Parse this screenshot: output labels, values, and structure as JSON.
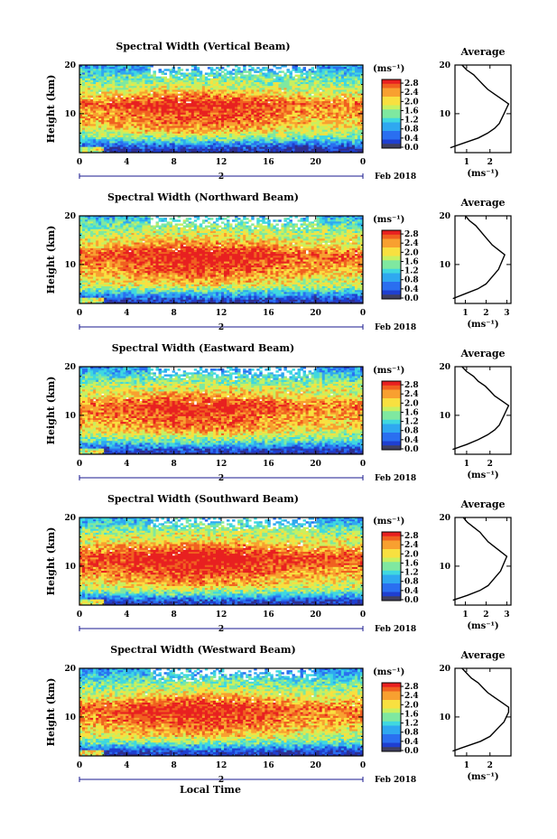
{
  "figure": {
    "x_label": "Local Time",
    "date_label": "Feb 2018",
    "day_label": "2",
    "y_label": "Height (km)",
    "colorbar_unit": "(ms⁻¹)",
    "avg_title": "Average",
    "avg_unit": "(ms⁻¹)"
  },
  "colors": {
    "scale": [
      "#2f2f8f",
      "#1f3fd0",
      "#2a6ff0",
      "#2fa8f0",
      "#3fd8e0",
      "#7fe8a0",
      "#c8f060",
      "#f8e040",
      "#f8a030",
      "#f06020",
      "#e82020"
    ]
  },
  "chart_data": [
    {
      "type": "heatmap",
      "title": "Spectral Width (Vertical Beam)",
      "x_ticks": [
        "0",
        "4",
        "8",
        "12",
        "16",
        "20",
        "0"
      ],
      "xlim": [
        0,
        24
      ],
      "y_ticks": [
        "20",
        "10"
      ],
      "ylim": [
        2,
        20
      ],
      "colorbar_ticks": [
        "2.8",
        "2.4",
        "2.0",
        "1.6",
        "1.2",
        "0.8",
        "0.4",
        "0.0"
      ],
      "clim": [
        0,
        3.0
      ],
      "profile": {
        "height": [
          3,
          4,
          5,
          6,
          7,
          8,
          9,
          10,
          11,
          12,
          13,
          14,
          15,
          16,
          17,
          18,
          19,
          20
        ],
        "width": [
          0.3,
          0.9,
          1.5,
          1.9,
          2.2,
          2.4,
          2.5,
          2.6,
          2.7,
          2.8,
          2.5,
          2.2,
          1.9,
          1.7,
          1.5,
          1.3,
          1.0,
          0.8
        ],
        "x_ticks": [
          "1",
          "2"
        ],
        "xlim": [
          0.5,
          2.9
        ]
      }
    },
    {
      "type": "heatmap",
      "title": "Spectral Width (Northward Beam)",
      "x_ticks": [
        "0",
        "4",
        "8",
        "12",
        "16",
        "20",
        "0"
      ],
      "xlim": [
        0,
        24
      ],
      "y_ticks": [
        "20",
        "10"
      ],
      "ylim": [
        2,
        20
      ],
      "colorbar_ticks": [
        "2.8",
        "2.4",
        "2.0",
        "1.6",
        "1.2",
        "0.8",
        "0.4",
        "0.0"
      ],
      "clim": [
        0,
        3.0
      ],
      "profile": {
        "height": [
          3,
          4,
          5,
          6,
          7,
          8,
          9,
          10,
          11,
          12,
          13,
          14,
          15,
          16,
          17,
          18,
          19,
          20
        ],
        "width": [
          0.4,
          1.0,
          1.6,
          2.0,
          2.2,
          2.4,
          2.6,
          2.7,
          2.8,
          2.9,
          2.6,
          2.3,
          2.1,
          1.9,
          1.7,
          1.5,
          1.2,
          1.0
        ],
        "x_ticks": [
          "1",
          "2",
          "3"
        ],
        "xlim": [
          0.5,
          3.2
        ]
      }
    },
    {
      "type": "heatmap",
      "title": "Spectral Width (Eastward Beam)",
      "x_ticks": [
        "0",
        "4",
        "8",
        "12",
        "16",
        "20",
        "0"
      ],
      "xlim": [
        0,
        24
      ],
      "y_ticks": [
        "20",
        "10"
      ],
      "ylim": [
        2,
        20
      ],
      "colorbar_ticks": [
        "2.8",
        "2.4",
        "2.0",
        "1.6",
        "1.2",
        "0.8",
        "0.4",
        "0.0"
      ],
      "clim": [
        0,
        3.0
      ],
      "profile": {
        "height": [
          3,
          4,
          5,
          6,
          7,
          8,
          9,
          10,
          11,
          12,
          13,
          14,
          15,
          16,
          17,
          18,
          19,
          20
        ],
        "width": [
          0.4,
          1.0,
          1.5,
          1.9,
          2.2,
          2.4,
          2.5,
          2.6,
          2.7,
          2.8,
          2.5,
          2.2,
          2.0,
          1.8,
          1.5,
          1.3,
          1.0,
          0.8
        ],
        "x_ticks": [
          "1",
          "2"
        ],
        "xlim": [
          0.5,
          2.9
        ]
      }
    },
    {
      "type": "heatmap",
      "title": "Spectral Width (Southward Beam)",
      "x_ticks": [
        "0",
        "4",
        "8",
        "12",
        "16",
        "20",
        "0"
      ],
      "xlim": [
        0,
        24
      ],
      "y_ticks": [
        "20",
        "10"
      ],
      "ylim": [
        2,
        20
      ],
      "colorbar_ticks": [
        "2.8",
        "2.4",
        "2.0",
        "1.6",
        "1.2",
        "0.8",
        "0.4",
        "0.0"
      ],
      "clim": [
        0,
        3.0
      ],
      "profile": {
        "height": [
          3,
          4,
          5,
          6,
          7,
          8,
          9,
          10,
          11,
          12,
          13,
          14,
          15,
          16,
          17,
          18,
          19,
          20
        ],
        "width": [
          0.4,
          1.1,
          1.7,
          2.1,
          2.3,
          2.5,
          2.7,
          2.8,
          2.9,
          3.0,
          2.7,
          2.4,
          2.1,
          1.9,
          1.7,
          1.4,
          1.1,
          0.9
        ],
        "x_ticks": [
          "1",
          "2",
          "3"
        ],
        "xlim": [
          0.5,
          3.2
        ]
      }
    },
    {
      "type": "heatmap",
      "title": "Spectral Width (Westward Beam)",
      "x_ticks": [
        "0",
        "4",
        "8",
        "12",
        "16",
        "20",
        "0"
      ],
      "xlim": [
        0,
        24
      ],
      "y_ticks": [
        "20",
        "10"
      ],
      "ylim": [
        2,
        20
      ],
      "colorbar_ticks": [
        "2.8",
        "2.4",
        "2.0",
        "1.6",
        "1.2",
        "0.8",
        "0.4",
        "0.0"
      ],
      "clim": [
        0,
        3.0
      ],
      "profile": {
        "height": [
          3,
          4,
          5,
          6,
          7,
          8,
          9,
          10,
          11,
          12,
          13,
          14,
          15,
          16,
          17,
          18,
          19,
          20
        ],
        "width": [
          0.4,
          1.0,
          1.6,
          2.0,
          2.2,
          2.4,
          2.6,
          2.7,
          2.8,
          2.8,
          2.5,
          2.2,
          1.9,
          1.7,
          1.5,
          1.2,
          1.0,
          0.8
        ],
        "x_ticks": [
          "1",
          "2"
        ],
        "xlim": [
          0.5,
          2.9
        ]
      }
    }
  ]
}
